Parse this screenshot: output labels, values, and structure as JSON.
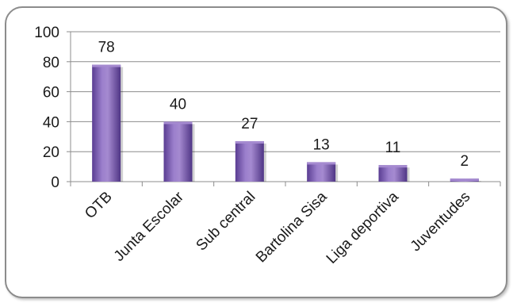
{
  "chart_data": {
    "type": "bar",
    "categories": [
      "OTB",
      "Junta Escolar",
      "Sub central",
      "Bartolina Sisa",
      "Liga deportiva",
      "Juventudes"
    ],
    "values": [
      78,
      40,
      27,
      13,
      11,
      2
    ],
    "title": "",
    "xlabel": "",
    "ylabel": "",
    "ylim": [
      0,
      100
    ],
    "yticks": [
      0,
      20,
      40,
      60,
      80,
      100
    ],
    "grid": true,
    "legend": "none",
    "data_labels": true
  },
  "colors": {
    "bar_light": "#a58ad0",
    "bar_mid": "#7b5bb4",
    "bar_dark": "#4f3585",
    "gridline": "#8c8c8c",
    "axis": "#8c8c8c",
    "frame": "#8c8c8c"
  }
}
